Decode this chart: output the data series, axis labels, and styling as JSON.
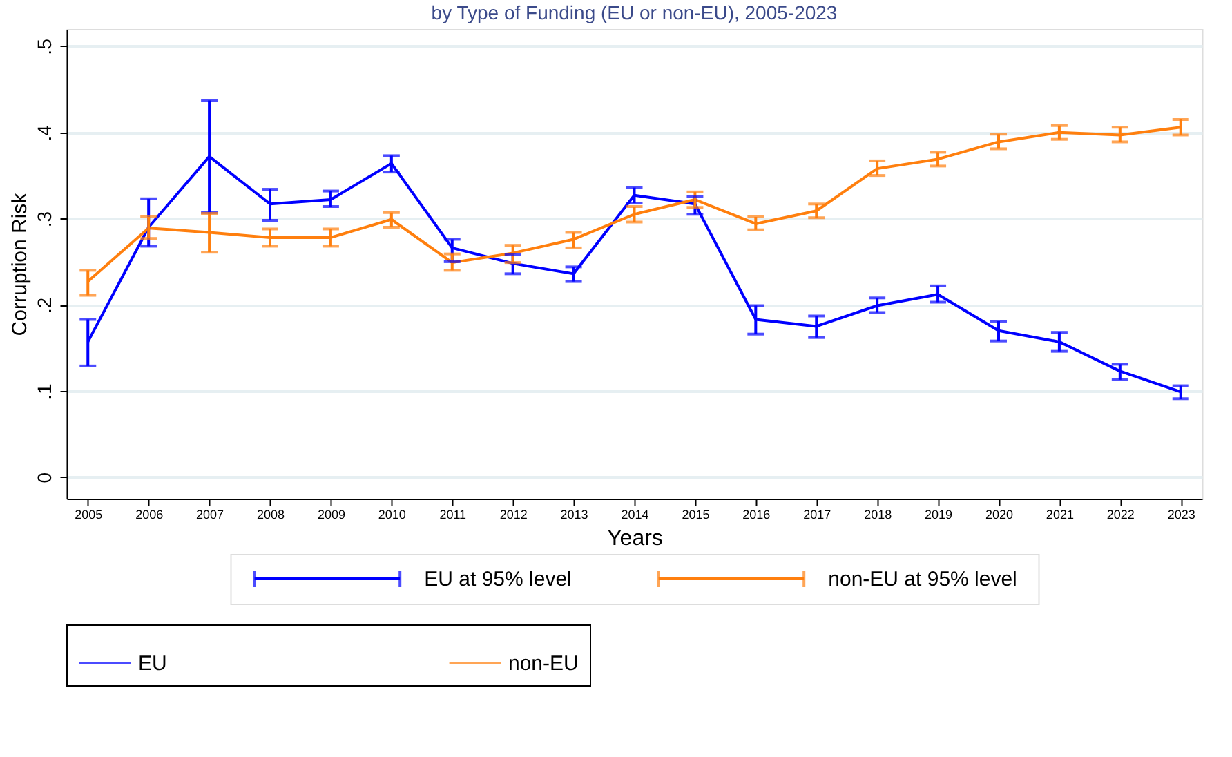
{
  "chart_data": {
    "type": "line",
    "title": "by Type of Funding (EU or non-EU), 2005-2023",
    "xlabel": "Years",
    "ylabel": "Corruption Risk",
    "categories": [
      "2005",
      "2006",
      "2007",
      "2008",
      "2009",
      "2010",
      "2011",
      "2012",
      "2013",
      "2014",
      "2015",
      "2016",
      "2017",
      "2018",
      "2019",
      "2020",
      "2021",
      "2022",
      "2023"
    ],
    "series": [
      {
        "name": "EU",
        "color": "#0000ff",
        "values": [
          0.157,
          0.29,
          0.372,
          0.317,
          0.322,
          0.364,
          0.266,
          0.248,
          0.236,
          0.327,
          0.317,
          0.183,
          0.175,
          0.199,
          0.212,
          0.17,
          0.157,
          0.123,
          0.099
        ],
        "errors": [
          [
            0.129,
            0.183
          ],
          [
            0.268,
            0.323
          ],
          [
            0.307,
            0.437
          ],
          [
            0.298,
            0.334
          ],
          [
            0.314,
            0.332
          ],
          [
            0.354,
            0.373
          ],
          [
            0.25,
            0.276
          ],
          [
            0.236,
            0.258
          ],
          [
            0.227,
            0.244
          ],
          [
            0.318,
            0.336
          ],
          [
            0.305,
            0.326
          ],
          [
            0.166,
            0.199
          ],
          [
            0.162,
            0.187
          ],
          [
            0.191,
            0.208
          ],
          [
            0.203,
            0.222
          ],
          [
            0.158,
            0.181
          ],
          [
            0.146,
            0.168
          ],
          [
            0.113,
            0.131
          ],
          [
            0.091,
            0.106
          ]
        ]
      },
      {
        "name": "non-EU",
        "color": "#ff7f0e",
        "values": [
          0.227,
          0.289,
          0.284,
          0.278,
          0.278,
          0.299,
          0.249,
          0.26,
          0.276,
          0.305,
          0.322,
          0.294,
          0.309,
          0.358,
          0.369,
          0.389,
          0.4,
          0.397,
          0.406
        ],
        "errors": [
          [
            0.211,
            0.24
          ],
          [
            0.277,
            0.302
          ],
          [
            0.261,
            0.306
          ],
          [
            0.268,
            0.288
          ],
          [
            0.268,
            0.288
          ],
          [
            0.29,
            0.307
          ],
          [
            0.24,
            0.259
          ],
          [
            0.249,
            0.269
          ],
          [
            0.266,
            0.284
          ],
          [
            0.296,
            0.314
          ],
          [
            0.313,
            0.331
          ],
          [
            0.287,
            0.302
          ],
          [
            0.301,
            0.317
          ],
          [
            0.35,
            0.367
          ],
          [
            0.361,
            0.377
          ],
          [
            0.381,
            0.398
          ],
          [
            0.392,
            0.408
          ],
          [
            0.389,
            0.406
          ],
          [
            0.397,
            0.415
          ]
        ]
      }
    ],
    "annotations": [
      "EU at 95% level",
      "non-EU at 95% level"
    ],
    "ylim": [
      -0.025,
      0.52
    ],
    "yticks": [
      {
        "value": 0,
        "label": "0"
      },
      {
        "value": 0.1,
        "label": ".1"
      },
      {
        "value": 0.2,
        "label": ".2"
      },
      {
        "value": 0.3,
        "label": ".3"
      },
      {
        "value": 0.4,
        "label": ".4"
      },
      {
        "value": 0.5,
        "label": ".5"
      }
    ],
    "grid": "y",
    "legend": "bottom",
    "marker": "none",
    "line_style": "solid"
  }
}
